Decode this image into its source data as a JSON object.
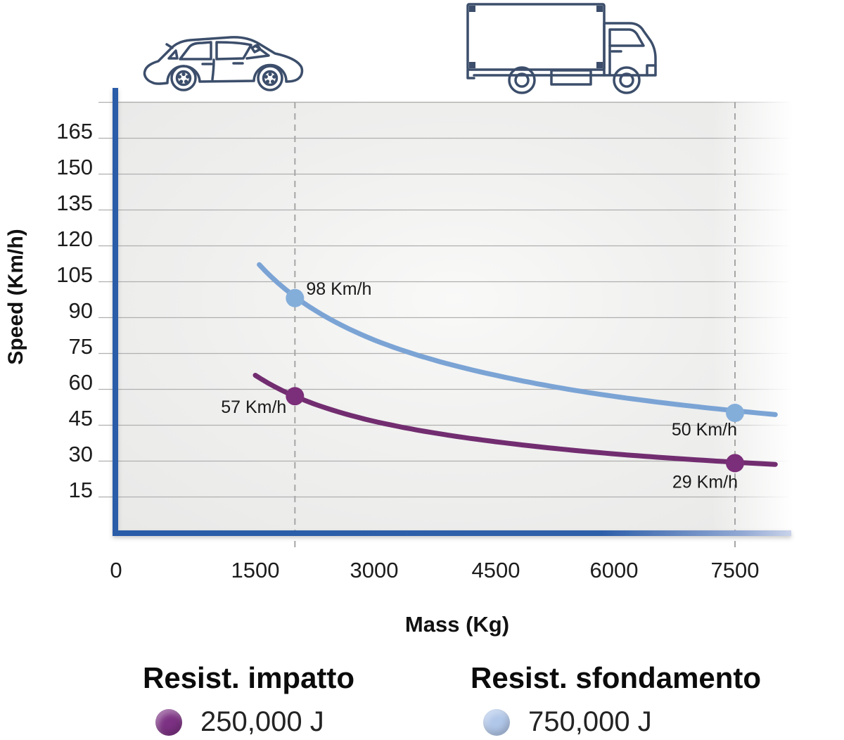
{
  "chart_data": {
    "type": "line",
    "title": "",
    "xlabel": "Mass (Kg)",
    "ylabel": "Speed (Km/h)",
    "x_ticks": [
      0,
      1500,
      3000,
      4500,
      6000,
      7500
    ],
    "y_ticks": [
      15,
      30,
      45,
      60,
      75,
      90,
      105,
      120,
      135,
      150,
      165
    ],
    "xlim": [
      0,
      8000
    ],
    "ylim": [
      0,
      180
    ],
    "grid": true,
    "legend_position": "bottom",
    "reference_masses": [
      2000,
      7500
    ],
    "series": [
      {
        "key": "sfondamento",
        "name": "Resist. sfondamento",
        "energy_joules": 750000,
        "color": "#7ba4d5",
        "marker_color": "#84aeda",
        "mass_range": [
          1550,
          8000
        ],
        "points": [
          {
            "mass": 2000,
            "speed": 98,
            "label": "98 Km/h",
            "label_dx": 16,
            "label_dy": -5,
            "label_anchor": "start"
          },
          {
            "mass": 7500,
            "speed": 50,
            "label": "50 Km/h",
            "label_dx": 3,
            "label_dy": 32,
            "label_anchor": "end"
          }
        ]
      },
      {
        "key": "impatto",
        "name": "Resist. impatto",
        "energy_joules": 250000,
        "color": "#722d70",
        "marker_color": "#7b2e79",
        "mass_range": [
          1500,
          8000
        ],
        "points": [
          {
            "mass": 2000,
            "speed": 57,
            "label": "57 Km/h",
            "label_dx": -12,
            "label_dy": 24,
            "label_anchor": "end"
          },
          {
            "mass": 7500,
            "speed": 29,
            "label": "29 Km/h",
            "label_dx": 4,
            "label_dy": 35,
            "label_anchor": "end"
          }
        ]
      }
    ]
  },
  "legend": {
    "items": [
      {
        "title": "Resist. impatto",
        "value": "250,000 J",
        "color": "#7c3183"
      },
      {
        "title": "Resist. sfondamento",
        "value": "750,000 J",
        "color": "#b1c7e9"
      }
    ]
  },
  "icons": {
    "car": "car-outline-icon",
    "truck": "truck-outline-icon"
  },
  "colors": {
    "axis": "#2b5ca8",
    "axis_fade_end": "#c9d3ea",
    "grid": "#b0b0b0",
    "reference_line": "#a6a6a6",
    "tick_text": "#1c1c1c",
    "point_label_text": "#1a1a1a",
    "vehicle_outline": "#3c4e6b",
    "background": "#ffffff",
    "plot_background": "#ececeb"
  }
}
